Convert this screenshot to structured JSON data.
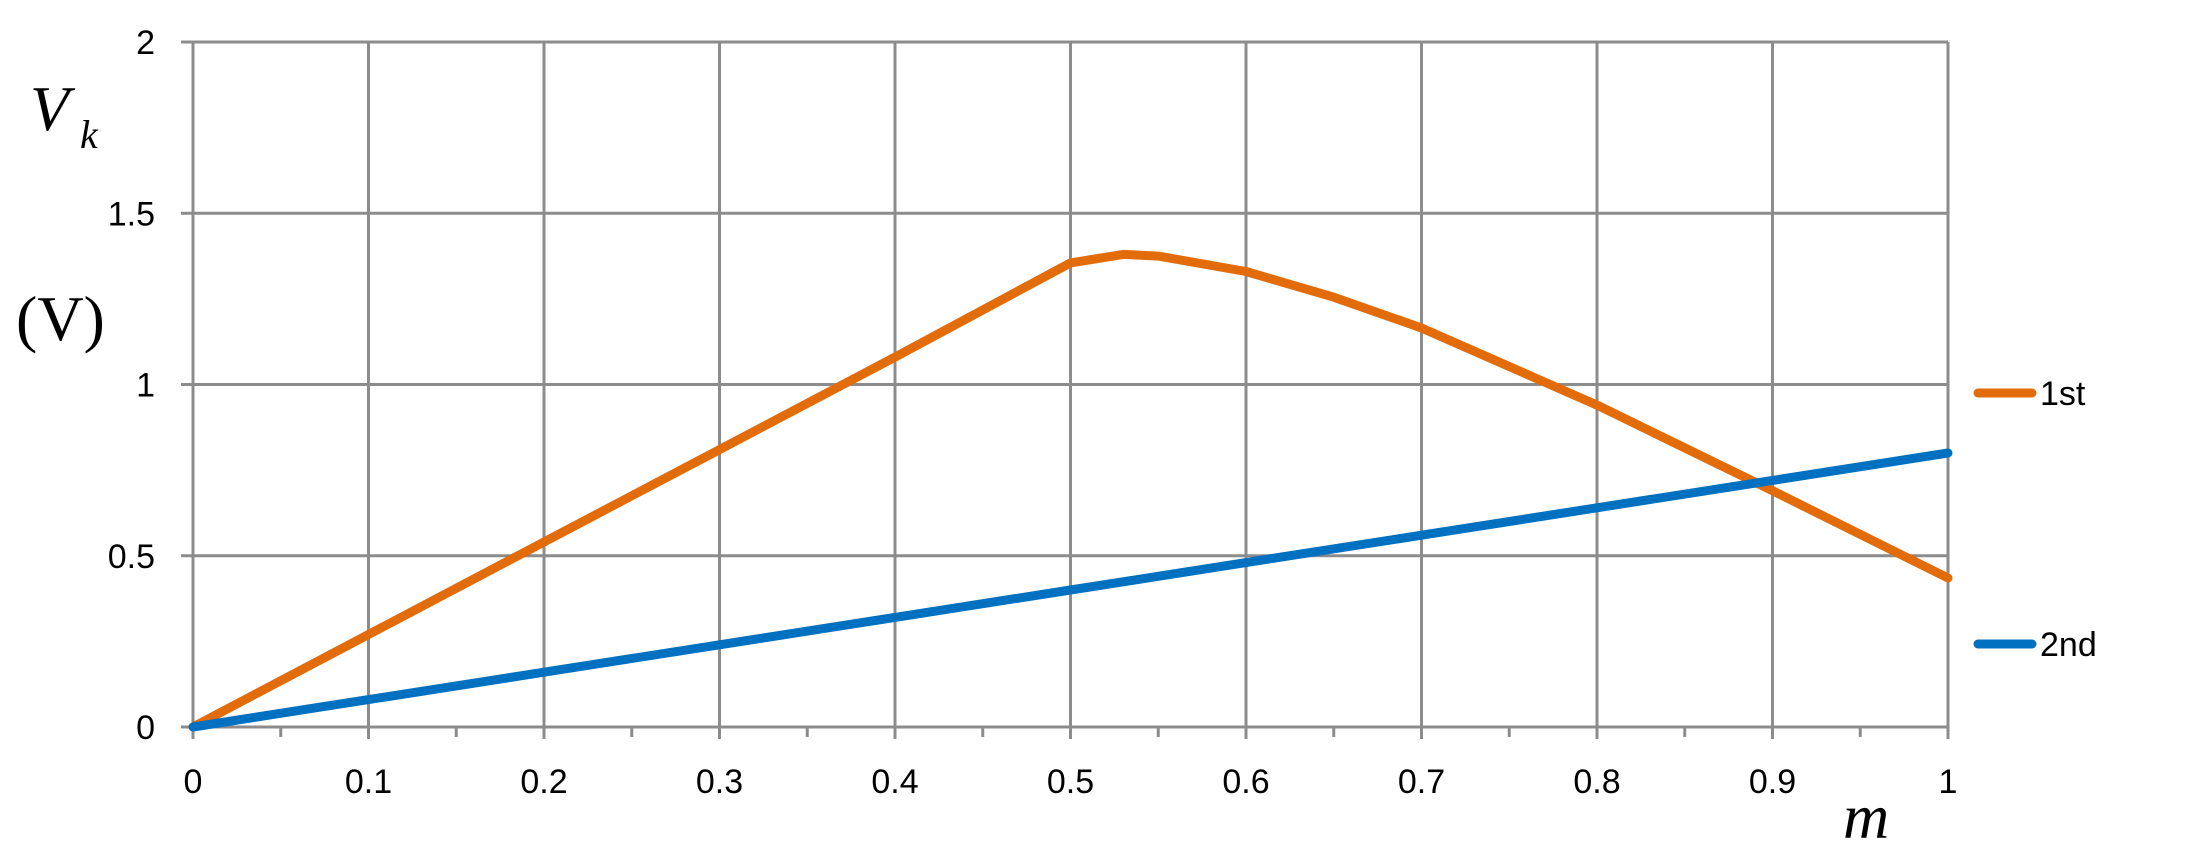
{
  "chart_data": {
    "type": "line",
    "title": "",
    "xlabel": "m",
    "ylabel": {
      "symbol": "V",
      "subscript": "k",
      "unit": "(V)"
    },
    "xlim": [
      0,
      1
    ],
    "ylim": [
      0,
      2
    ],
    "x_ticks": [
      "0",
      "0.1",
      "0.2",
      "0.3",
      "0.4",
      "0.5",
      "0.6",
      "0.7",
      "0.8",
      "0.9",
      "1"
    ],
    "y_ticks": [
      "0",
      "0.5",
      "1",
      "1.5",
      "2"
    ],
    "x_minor_step": 0.05,
    "grid": true,
    "legend_position": "right",
    "series": [
      {
        "name": "1st",
        "color": "#E36C0A",
        "x": [
          0,
          0.1,
          0.2,
          0.3,
          0.4,
          0.5,
          0.53,
          0.55,
          0.6,
          0.65,
          0.7,
          0.8,
          0.9,
          1.0
        ],
        "y": [
          0,
          0.27,
          0.54,
          0.81,
          1.08,
          1.355,
          1.38,
          1.375,
          1.33,
          1.255,
          1.165,
          0.94,
          0.69,
          0.435
        ]
      },
      {
        "name": "2nd",
        "color": "#0070C0",
        "x": [
          0,
          0.1,
          0.2,
          0.3,
          0.4,
          0.5,
          0.6,
          0.7,
          0.8,
          0.9,
          1.0
        ],
        "y": [
          0,
          0.08,
          0.16,
          0.24,
          0.32,
          0.4,
          0.48,
          0.56,
          0.64,
          0.72,
          0.8
        ]
      }
    ]
  }
}
